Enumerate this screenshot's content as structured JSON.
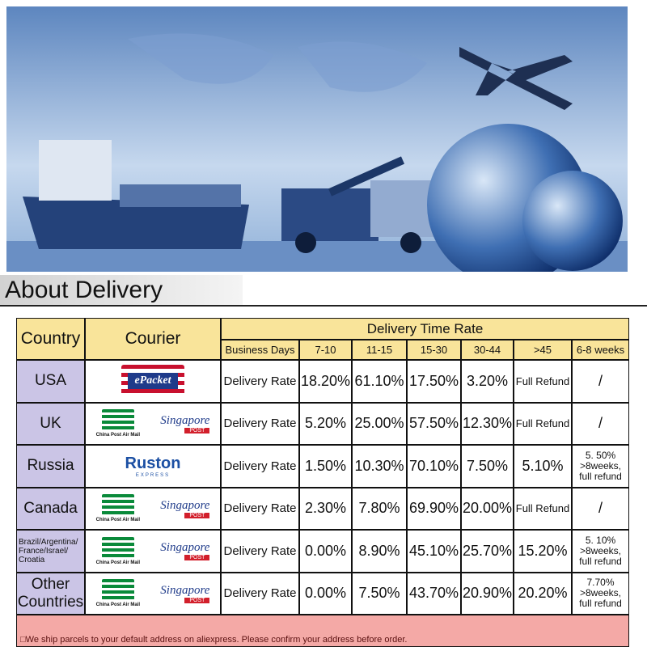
{
  "header": {
    "title": "About Delivery"
  },
  "table": {
    "country_header": "Country",
    "courier_header": "Courier",
    "rate_header": "Delivery Time Rate",
    "columns": [
      "Business Days",
      "7-10",
      "11-15",
      "15-30",
      "30-44",
      ">45",
      "6-8 weeks"
    ],
    "rows": [
      {
        "country": [
          "USA"
        ],
        "couriers": {
          "epacket": "ePacket"
        },
        "label": "Delivery Rate",
        "cells": [
          [
            "18.20%"
          ],
          [
            "61.10%"
          ],
          [
            "17.50%"
          ],
          [
            "3.20%"
          ],
          [
            "Full Refund"
          ],
          [
            "/"
          ]
        ]
      },
      {
        "country": [
          "UK"
        ],
        "couriers": {
          "china_post": "China Post Air Mail",
          "singapore_post": [
            "Singapore",
            "POST"
          ]
        },
        "label": "Delivery Rate",
        "cells": [
          [
            "5.20%"
          ],
          [
            "25.00%"
          ],
          [
            "57.50%"
          ],
          [
            "12.30%"
          ],
          [
            "Full Refund"
          ],
          [
            "/"
          ]
        ]
      },
      {
        "country": [
          "Russia"
        ],
        "couriers": {
          "ruston": [
            "Ruston",
            "EXPRESS"
          ]
        },
        "label": "Delivery Rate",
        "cells": [
          [
            "1.50%"
          ],
          [
            "10.30%"
          ],
          [
            "70.10%"
          ],
          [
            "7.50%"
          ],
          [
            "5.10%"
          ],
          [
            "5. 50%",
            ">8weeks,",
            "full refund"
          ]
        ]
      },
      {
        "country": [
          "Canada"
        ],
        "couriers": {
          "china_post": "China Post Air Mail",
          "singapore_post": [
            "Singapore",
            "POST"
          ]
        },
        "label": "Delivery Rate",
        "cells": [
          [
            "2.30%"
          ],
          [
            "7.80%"
          ],
          [
            "69.90%"
          ],
          [
            "20.00%"
          ],
          [
            "Full Refund"
          ],
          [
            "/"
          ]
        ]
      },
      {
        "country": [
          "Brazil/Argentina/",
          "France/Israel/",
          "Croatia"
        ],
        "couriers": {
          "china_post": "China Post Air Mail",
          "singapore_post": [
            "Singapore",
            "POST"
          ]
        },
        "label": "Delivery Rate",
        "cells": [
          [
            "0.00%"
          ],
          [
            "8.90%"
          ],
          [
            "45.10%"
          ],
          [
            "25.70%"
          ],
          [
            "15.20%"
          ],
          [
            "5. 10%",
            ">8weeks,",
            "full refund"
          ]
        ]
      },
      {
        "country": [
          "Other Countries"
        ],
        "couriers": {
          "china_post": "China Post Air Mail",
          "singapore_post": [
            "Singapore",
            "POST"
          ]
        },
        "label": "Delivery Rate",
        "cells": [
          [
            "0.00%"
          ],
          [
            "7.50%"
          ],
          [
            "43.70%"
          ],
          [
            "20.90%"
          ],
          [
            "20.20%"
          ],
          [
            "7.70%",
            ">8weeks,",
            "full refund"
          ]
        ]
      }
    ]
  },
  "footer": "□We ship parcels to your default address on aliexpress. Please confirm your address before order."
}
